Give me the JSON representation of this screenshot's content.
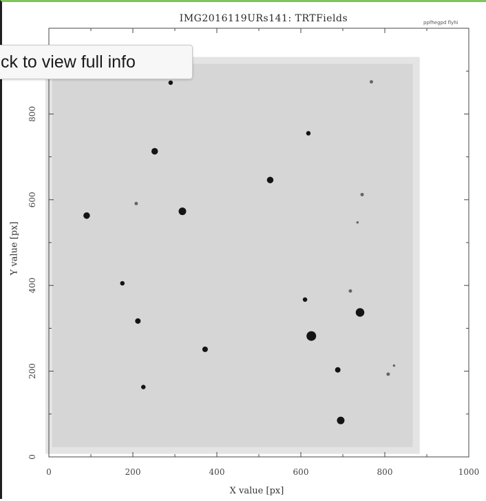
{
  "tooltip": {
    "text": "ck to view full info"
  },
  "plot": {
    "title": "IMG2016119URs141: TRTFields",
    "watermark": "ppfhegpd flyhi",
    "xlabel": "X value [px]",
    "ylabel": "Y value [px]"
  },
  "chart_data": {
    "type": "scatter",
    "title": "IMG2016119URs141: TRTFields",
    "xlabel": "X value [px]",
    "ylabel": "Y value [px]",
    "xlim": [
      0,
      1000
    ],
    "ylim": [
      0,
      1000
    ],
    "xticks": [
      0,
      200,
      400,
      600,
      800,
      1000
    ],
    "yticks": [
      0,
      200,
      400,
      600,
      800
    ],
    "xtick_labels": [
      "0",
      "200",
      "400",
      "600",
      "800",
      "1000"
    ],
    "ytick_labels": [
      "0",
      "200",
      "400",
      "600",
      "800"
    ],
    "image_extent": {
      "x": [
        0,
        875
      ],
      "y": [
        15,
        925
      ]
    },
    "background": "#d6d6d6",
    "star_color": "#0a0a0a",
    "stars": [
      {
        "x": 290,
        "y": 873,
        "mag": 3
      },
      {
        "x": 768,
        "y": 875,
        "mag": 2
      },
      {
        "x": 618,
        "y": 755,
        "mag": 3
      },
      {
        "x": 252,
        "y": 713,
        "mag": 5
      },
      {
        "x": 527,
        "y": 646,
        "mag": 5
      },
      {
        "x": 90,
        "y": 563,
        "mag": 5
      },
      {
        "x": 318,
        "y": 573,
        "mag": 6
      },
      {
        "x": 208,
        "y": 591,
        "mag": 2
      },
      {
        "x": 746,
        "y": 612,
        "mag": 2
      },
      {
        "x": 175,
        "y": 405,
        "mag": 3
      },
      {
        "x": 610,
        "y": 367,
        "mag": 3
      },
      {
        "x": 718,
        "y": 387,
        "mag": 2
      },
      {
        "x": 741,
        "y": 337,
        "mag": 7
      },
      {
        "x": 212,
        "y": 317,
        "mag": 4
      },
      {
        "x": 625,
        "y": 282,
        "mag": 8
      },
      {
        "x": 372,
        "y": 251,
        "mag": 4
      },
      {
        "x": 688,
        "y": 203,
        "mag": 4
      },
      {
        "x": 808,
        "y": 193,
        "mag": 2
      },
      {
        "x": 225,
        "y": 163,
        "mag": 3
      },
      {
        "x": 695,
        "y": 85,
        "mag": 6
      },
      {
        "x": 822,
        "y": 213,
        "mag": 1
      },
      {
        "x": 735,
        "y": 547,
        "mag": 1
      }
    ]
  }
}
